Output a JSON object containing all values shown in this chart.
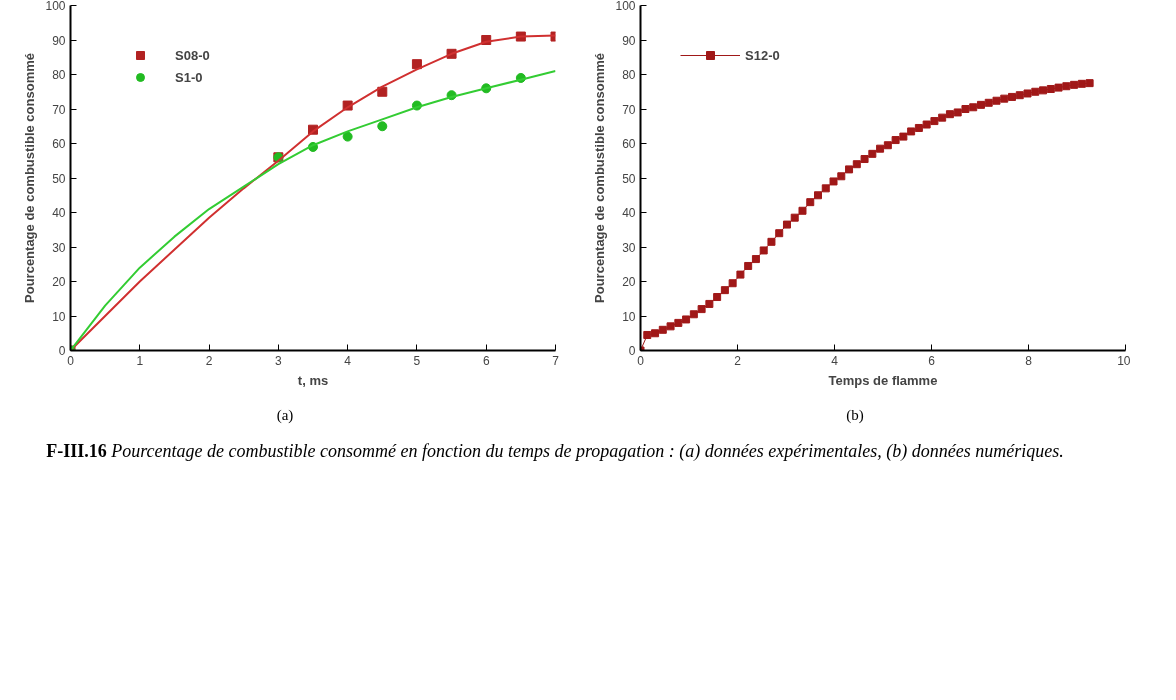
{
  "chart_data": [
    {
      "type": "line",
      "xlabel": "t, ms",
      "ylabel": "Pourcentage de combustible consommé",
      "xlim": [
        0,
        7
      ],
      "ylim": [
        0,
        100
      ],
      "xticks": [
        0,
        1,
        2,
        3,
        4,
        5,
        6,
        7
      ],
      "yticks": [
        0,
        10,
        20,
        30,
        40,
        50,
        60,
        70,
        80,
        90,
        100
      ],
      "grid": false,
      "legend": "top left",
      "annotations": [
        "(a)",
        "F-III.16 Pourcentage de combustible consommé en fonction du temps de propagation : (a) données expérimentales, (b) données numériques."
      ],
      "series": [
        {
          "name": "S08-0",
          "type": "scatter",
          "marker": "square",
          "color": "#b22222",
          "x": [
            0,
            3,
            3.5,
            4,
            4.5,
            5,
            5.5,
            6,
            6.5,
            7
          ],
          "values": [
            0,
            56,
            64,
            71,
            75,
            83,
            86,
            90,
            91,
            91
          ]
        },
        {
          "name": "S1-0",
          "type": "scatter",
          "marker": "circle",
          "color": "#22bb22",
          "x": [
            0,
            3,
            3.5,
            4,
            4.5,
            5,
            5.5,
            6,
            6.5
          ],
          "values": [
            0,
            56,
            59,
            62,
            65,
            71,
            74,
            76,
            79
          ]
        },
        {
          "type": "line",
          "marker": "none",
          "color": "#d03030",
          "x": [
            0,
            1,
            2,
            2.5,
            3,
            3.5,
            4,
            4.5,
            5,
            5.5,
            6,
            6.5,
            7
          ],
          "values": [
            0,
            20,
            38.5,
            47,
            55,
            63.5,
            70.5,
            76.5,
            81.5,
            86,
            89.5,
            91,
            91.3
          ]
        },
        {
          "type": "line",
          "marker": "none",
          "color": "#33cc33",
          "x": [
            0,
            0.5,
            1,
            1.5,
            2,
            2.5,
            3,
            3.5,
            4,
            4.5,
            5,
            5.5,
            6,
            6.5,
            7
          ],
          "values": [
            0,
            13,
            24,
            33,
            41,
            47.5,
            54,
            59.5,
            63.5,
            67,
            70.5,
            73.5,
            76,
            78.5,
            81
          ]
        }
      ]
    },
    {
      "type": "line",
      "xlabel": "Temps de flamme",
      "ylabel": "Pourcentage de combustible consommé",
      "xlim": [
        0,
        10
      ],
      "ylim": [
        0,
        100
      ],
      "xticks": [
        0,
        2,
        4,
        6,
        8,
        10
      ],
      "yticks": [
        0,
        10,
        20,
        30,
        40,
        50,
        60,
        70,
        80,
        90,
        100
      ],
      "grid": false,
      "legend": "top left",
      "marker": "square",
      "annotations": [
        "(b)"
      ],
      "series": [
        {
          "name": "S12-0",
          "color": "#a01818",
          "x": [
            0,
            0.14,
            0.3,
            0.46,
            0.62,
            0.78,
            0.94,
            1.1,
            1.26,
            1.42,
            1.58,
            1.74,
            1.9,
            2.06,
            2.22,
            2.38,
            2.54,
            2.7,
            2.86,
            3.02,
            3.18,
            3.34,
            3.5,
            3.66,
            3.82,
            3.98,
            4.14,
            4.3,
            4.46,
            4.62,
            4.78,
            4.94,
            5.1,
            5.26,
            5.42,
            5.58,
            5.74,
            5.9,
            6.06,
            6.22,
            6.38,
            6.54,
            6.7,
            6.86,
            7.02,
            7.18,
            7.34,
            7.5,
            7.66,
            7.82,
            7.98,
            8.14,
            8.3,
            8.46,
            8.62,
            8.78,
            8.94,
            9.1,
            9.26
          ],
          "values": [
            0,
            4.5,
            5,
            6,
            7,
            8,
            9,
            10.5,
            12,
            13.5,
            15.5,
            17.5,
            19.5,
            22,
            24.5,
            26.5,
            29,
            31.5,
            34,
            36.5,
            38.5,
            40.5,
            43,
            45,
            47,
            49,
            50.5,
            52.5,
            54,
            55.5,
            57,
            58.5,
            59.5,
            61,
            62,
            63.5,
            64.5,
            65.5,
            66.5,
            67.5,
            68.5,
            69,
            70,
            70.5,
            71.2,
            71.8,
            72.4,
            73,
            73.5,
            74,
            74.5,
            75,
            75.4,
            75.8,
            76.2,
            76.6,
            77,
            77.3,
            77.5
          ]
        }
      ]
    }
  ]
}
